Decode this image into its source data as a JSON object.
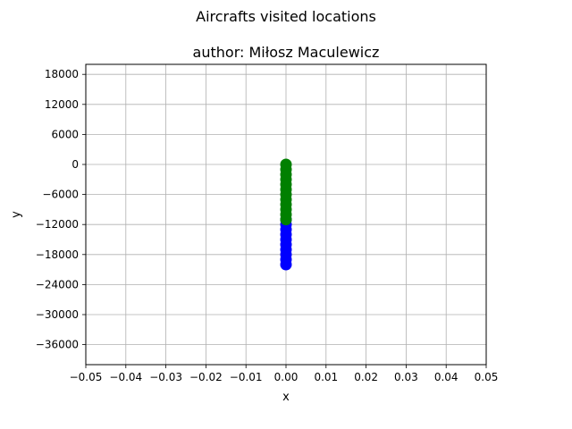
{
  "chart_data": {
    "type": "scatter",
    "title": "Aircrafts visited locations",
    "subtitle": "author: Miłosz Maculewicz",
    "xlabel": "x",
    "ylabel": "y",
    "xlim": [
      -0.05,
      0.05
    ],
    "ylim": [
      -40000,
      20000
    ],
    "grid": true,
    "x_ticks": [
      -0.05,
      -0.04,
      -0.03,
      -0.02,
      -0.01,
      0.0,
      0.01,
      0.02,
      0.03,
      0.04,
      0.05
    ],
    "x_tick_labels": [
      "−0.05",
      "−0.04",
      "−0.03",
      "−0.02",
      "−0.01",
      "0.00",
      "0.01",
      "0.02",
      "0.03",
      "0.04",
      "0.05"
    ],
    "y_ticks": [
      18000,
      12000,
      6000,
      0,
      -6000,
      -12000,
      -18000,
      -24000,
      -30000,
      -36000
    ],
    "y_tick_labels": [
      "18000",
      "12000",
      "6000",
      "0",
      "−6000",
      "−12000",
      "−18000",
      "−24000",
      "−30000",
      "−36000"
    ],
    "series": [
      {
        "color": "#0000ff",
        "x": [
          0,
          0,
          0,
          0,
          0,
          0,
          0,
          0,
          0,
          0
        ],
        "y": [
          -11000,
          -12000,
          -13000,
          -14000,
          -15000,
          -16000,
          -17000,
          -18000,
          -19000,
          -20000
        ]
      },
      {
        "color": "#008000",
        "x": [
          0,
          0,
          0,
          0,
          0,
          0,
          0,
          0,
          0,
          0,
          0,
          0
        ],
        "y": [
          0,
          -1000,
          -2000,
          -3000,
          -4000,
          -5000,
          -6000,
          -7000,
          -8000,
          -9000,
          -10000,
          -11000
        ]
      }
    ]
  }
}
